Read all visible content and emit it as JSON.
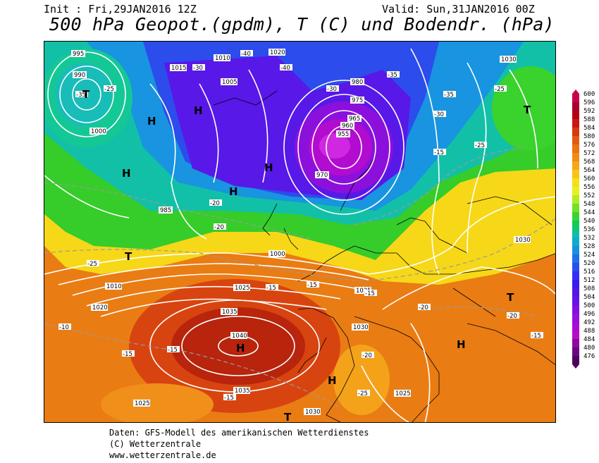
{
  "header": {
    "init": "Init : Fri,29JAN2016 12Z",
    "valid": "Valid: Sun,31JAN2016 00Z",
    "title": "500 hPa Geopot.(gpdm), T (C) und Bodendr. (hPa)"
  },
  "legend": {
    "levels": [
      600,
      596,
      592,
      588,
      584,
      580,
      576,
      572,
      568,
      564,
      560,
      556,
      552,
      548,
      544,
      540,
      536,
      532,
      528,
      524,
      520,
      516,
      512,
      508,
      504,
      500,
      496,
      492,
      488,
      484,
      480,
      476
    ],
    "colors": [
      "#c8004e",
      "#a8002e",
      "#b40014",
      "#c81a10",
      "#d63a10",
      "#e25a10",
      "#ea7410",
      "#f08c14",
      "#f5a814",
      "#f8c418",
      "#f6e018",
      "#e8f01e",
      "#b4ec20",
      "#74e028",
      "#38d430",
      "#14c85a",
      "#0cc0a0",
      "#10aad0",
      "#1890e0",
      "#2070e8",
      "#2850ec",
      "#3030f0",
      "#3c1cf0",
      "#5018e8",
      "#6812e4",
      "#8010e0",
      "#9410dc",
      "#a80cd8",
      "#b80cc8",
      "#9008a0",
      "#6c0680",
      "#500060"
    ]
  },
  "map": {
    "pressure_labels": [
      "995",
      "990",
      "1010",
      "1005",
      "1000",
      "1015",
      "1020",
      "1025",
      "1030",
      "1035",
      "1040",
      "985",
      "980",
      "975",
      "970",
      "965",
      "960",
      "955",
      "1000",
      "1010",
      "1020",
      "1025",
      "1030",
      "1025",
      "1030",
      "1035",
      "1025",
      "1030"
    ],
    "temp_labels": [
      "-35",
      "-25",
      "-30",
      "-40",
      "-40",
      "-35",
      "-30",
      "-35",
      "-25",
      "-30",
      "-20",
      "-25",
      "-15",
      "-10",
      "-15",
      "-15",
      "-20",
      "-15",
      "-25",
      "-15",
      "-20",
      "-15",
      "-15",
      "-25",
      "-20",
      "-20",
      "-15"
    ],
    "pressure_centers": [
      "H",
      "H",
      "H",
      "H",
      "H",
      "H",
      "H",
      "H",
      "T",
      "T",
      "T",
      "T",
      "T"
    ]
  },
  "footer": {
    "line1": "Daten: GFS-Modell des amerikanischen Wetterdienstes",
    "line2": "(C) Wetterzentrale",
    "line3": "www.wetterzentrale.de"
  }
}
